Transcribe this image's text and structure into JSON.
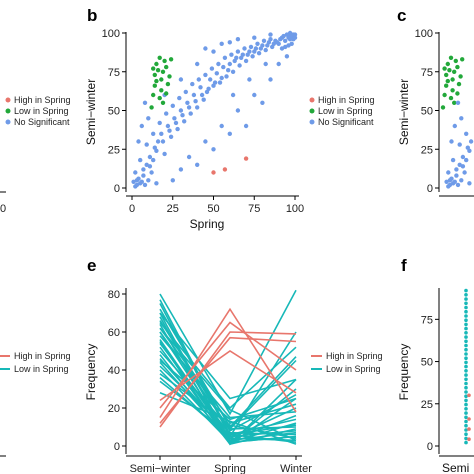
{
  "colors": {
    "high": "#e8766c",
    "low": "#22a83a",
    "none": "#6f9be8",
    "low_line": "#17b8b8"
  },
  "panels": {
    "b_letter": "b",
    "c_letter": "c",
    "e_letter": "e",
    "f_letter": "f"
  },
  "legend_scatter": [
    "High in Spring",
    "Low in Spring",
    "No Significant"
  ],
  "legend_lines": [
    "High in Spring",
    "Low in Spring"
  ],
  "chart_data": [
    {
      "id": "b",
      "type": "scatter",
      "xlabel": "Spring",
      "ylabel": "Semi−winter",
      "xlim": [
        0,
        100
      ],
      "ylim": [
        0,
        100
      ],
      "xticks": [
        "0",
        "25",
        "50",
        "75",
        "100"
      ],
      "yticks": [
        "0",
        "25",
        "50",
        "75",
        "100"
      ],
      "series": [
        {
          "name": "High in Spring",
          "points": [
            [
              50,
              10
            ],
            [
              57,
              12
            ],
            [
              70,
              19
            ]
          ]
        },
        {
          "name": "Low in Spring",
          "points": [
            [
              12,
              52
            ],
            [
              13,
              60
            ],
            [
              14,
              66
            ],
            [
              14,
              73
            ],
            [
              15,
              80
            ],
            [
              16,
              76
            ],
            [
              17,
              58
            ],
            [
              18,
              63
            ],
            [
              18,
              70
            ],
            [
              19,
              75
            ],
            [
              20,
              82
            ],
            [
              21,
              78
            ],
            [
              22,
              67
            ],
            [
              23,
              72
            ],
            [
              24,
              83
            ],
            [
              15,
              69
            ],
            [
              17,
              84
            ],
            [
              19,
              55
            ],
            [
              21,
              61
            ],
            [
              13,
              77
            ]
          ]
        },
        {
          "name": "No Significant",
          "points": [
            [
              2,
              1
            ],
            [
              3,
              2
            ],
            [
              5,
              3
            ],
            [
              4,
              6
            ],
            [
              6,
              4
            ],
            [
              8,
              2
            ],
            [
              7,
              8
            ],
            [
              10,
              5
            ],
            [
              12,
              10
            ],
            [
              9,
              15
            ],
            [
              11,
              20
            ],
            [
              13,
              18
            ],
            [
              14,
              26
            ],
            [
              16,
              30
            ],
            [
              18,
              35
            ],
            [
              20,
              22
            ],
            [
              22,
              40
            ],
            [
              24,
              33
            ],
            [
              26,
              45
            ],
            [
              28,
              38
            ],
            [
              30,
              50
            ],
            [
              32,
              43
            ],
            [
              34,
              55
            ],
            [
              36,
              48
            ],
            [
              38,
              60
            ],
            [
              40,
              52
            ],
            [
              42,
              65
            ],
            [
              44,
              57
            ],
            [
              46,
              62
            ],
            [
              48,
              70
            ],
            [
              50,
              66
            ],
            [
              52,
              74
            ],
            [
              54,
              68
            ],
            [
              56,
              78
            ],
            [
              58,
              72
            ],
            [
              60,
              80
            ],
            [
              62,
              75
            ],
            [
              64,
              84
            ],
            [
              66,
              79
            ],
            [
              68,
              86
            ],
            [
              70,
              82
            ],
            [
              72,
              88
            ],
            [
              74,
              85
            ],
            [
              76,
              90
            ],
            [
              78,
              87
            ],
            [
              80,
              92
            ],
            [
              82,
              89
            ],
            [
              84,
              94
            ],
            [
              86,
              91
            ],
            [
              88,
              95
            ],
            [
              90,
              93
            ],
            [
              92,
              97
            ],
            [
              94,
              95
            ],
            [
              96,
              98
            ],
            [
              98,
              97
            ],
            [
              99,
              99
            ],
            [
              97,
              100
            ],
            [
              95,
              99
            ],
            [
              93,
              98
            ],
            [
              91,
              96
            ],
            [
              89,
              94
            ],
            [
              87,
              93
            ],
            [
              85,
              96
            ],
            [
              83,
              92
            ],
            [
              81,
              95
            ],
            [
              79,
              90
            ],
            [
              77,
              93
            ],
            [
              75,
              88
            ],
            [
              73,
              91
            ],
            [
              71,
              86
            ],
            [
              69,
              90
            ],
            [
              67,
              84
            ],
            [
              65,
              88
            ],
            [
              63,
              82
            ],
            [
              61,
              86
            ],
            [
              59,
              76
            ],
            [
              57,
              84
            ],
            [
              55,
              71
            ],
            [
              53,
              80
            ],
            [
              51,
              68
            ],
            [
              49,
              77
            ],
            [
              47,
              64
            ],
            [
              45,
              73
            ],
            [
              43,
              60
            ],
            [
              41,
              70
            ],
            [
              39,
              56
            ],
            [
              37,
              67
            ],
            [
              35,
              52
            ],
            [
              33,
              62
            ],
            [
              31,
              47
            ],
            [
              29,
              58
            ],
            [
              27,
              42
            ],
            [
              25,
              53
            ],
            [
              23,
              37
            ],
            [
              21,
              48
            ],
            [
              19,
              30
            ],
            [
              17,
              42
            ],
            [
              15,
              24
            ],
            [
              13,
              35
            ],
            [
              11,
              14
            ],
            [
              9,
              28
            ],
            [
              7,
              12
            ],
            [
              5,
              18
            ],
            [
              3,
              5
            ],
            [
              10,
              45
            ],
            [
              20,
              60
            ],
            [
              30,
              70
            ],
            [
              40,
              80
            ],
            [
              50,
              88
            ],
            [
              60,
              94
            ],
            [
              35,
              20
            ],
            [
              45,
              30
            ],
            [
              55,
              40
            ],
            [
              65,
              50
            ],
            [
              75,
              60
            ],
            [
              85,
              70
            ],
            [
              90,
              80
            ],
            [
              95,
              85
            ],
            [
              40,
              15
            ],
            [
              60,
              35
            ],
            [
              80,
              55
            ],
            [
              70,
              40
            ],
            [
              50,
              25
            ],
            [
              30,
              12
            ],
            [
              25,
              5
            ],
            [
              15,
              3
            ],
            [
              6,
              40
            ],
            [
              8,
              55
            ],
            [
              4,
              30
            ],
            [
              2,
              10
            ],
            [
              1,
              4
            ],
            [
              45,
              90
            ],
            [
              55,
              93
            ],
            [
              65,
              96
            ],
            [
              75,
              97
            ],
            [
              85,
              99
            ],
            [
              62,
              60
            ],
            [
              72,
              70
            ],
            [
              82,
              80
            ],
            [
              92,
              90
            ],
            [
              98,
              93
            ],
            [
              96,
              92
            ],
            [
              94,
              91
            ],
            [
              99,
              96
            ],
            [
              100,
              99
            ],
            [
              100,
              97
            ],
            [
              98,
              99
            ],
            [
              97,
              96
            ],
            [
              96,
              97
            ]
          ]
        }
      ]
    },
    {
      "id": "e",
      "type": "line",
      "xlabel": "",
      "ylabel": "Frequency",
      "categories": [
        "Semi−winter",
        "Spring",
        "Winter"
      ],
      "ylim": [
        0,
        85
      ],
      "yticks": [
        "0",
        "20",
        "40",
        "60",
        "80"
      ],
      "series": [
        {
          "name": "High in Spring",
          "lines": [
            [
              10,
              60,
              59
            ],
            [
              15,
              72,
              18
            ],
            [
              20,
              65,
              40
            ],
            [
              24,
              50,
              28
            ],
            [
              12,
              57,
              55
            ]
          ]
        },
        {
          "name": "Low in Spring",
          "lines": [
            [
              80,
              17,
              82
            ],
            [
              75,
              5,
              60
            ],
            [
              72,
              10,
              47
            ],
            [
              70,
              25,
              35
            ],
            [
              68,
              2,
              30
            ],
            [
              66,
              8,
              27
            ],
            [
              64,
              1,
              25
            ],
            [
              62,
              12,
              22
            ],
            [
              60,
              4,
              20
            ],
            [
              58,
              15,
              18
            ],
            [
              56,
              3,
              16
            ],
            [
              54,
              6,
              14
            ],
            [
              52,
              2,
              12
            ],
            [
              50,
              9,
              10
            ],
            [
              48,
              1,
              9
            ],
            [
              46,
              5,
              8
            ],
            [
              44,
              3,
              7
            ],
            [
              42,
              7,
              6
            ],
            [
              40,
              2,
              5
            ],
            [
              38,
              11,
              4
            ],
            [
              36,
              4,
              3
            ],
            [
              34,
              6,
              2
            ],
            [
              28,
              13,
              1
            ],
            [
              65,
              20,
              52
            ],
            [
              60,
              9,
              45
            ],
            [
              55,
              1,
              35
            ],
            [
              45,
              14,
              25
            ],
            [
              70,
              2,
              5
            ],
            [
              77,
              6,
              11
            ],
            [
              62,
              19,
              3
            ]
          ]
        }
      ]
    }
  ]
}
